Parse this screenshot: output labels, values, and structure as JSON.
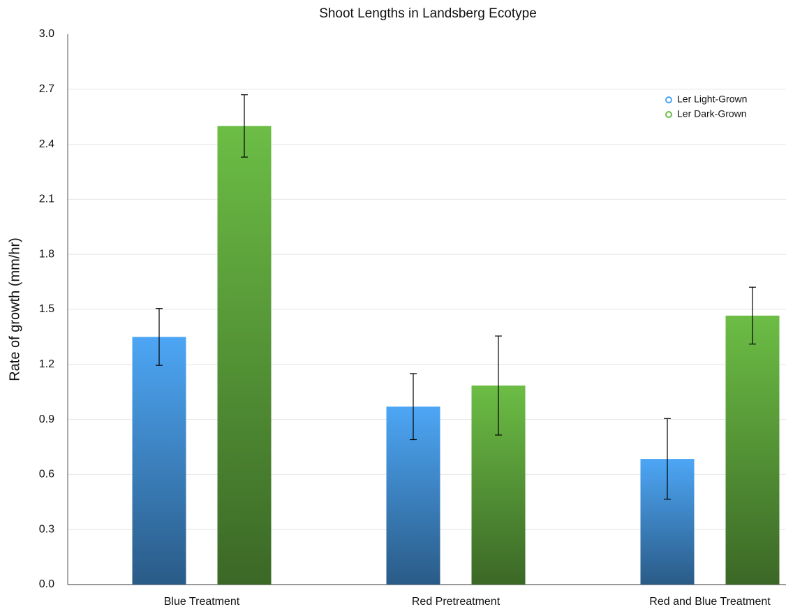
{
  "chart_data": {
    "type": "bar",
    "title": "Shoot Lengths in Landsberg Ecotype",
    "y_label": "Rate of growth (mm/hr)",
    "categories": [
      "Blue Treatment",
      "Red Pretreatment",
      "Red and Blue Treatment"
    ],
    "series": [
      {
        "name": "Ler Light-Grown",
        "color": "#4da6f5",
        "values": [
          1.35,
          0.97,
          0.685
        ],
        "errors": [
          0.155,
          0.18,
          0.22
        ]
      },
      {
        "name": "Ler Dark-Grown",
        "color": "#6cbd45",
        "values": [
          2.5,
          1.085,
          1.466
        ],
        "errors": [
          0.17,
          0.27,
          0.155
        ]
      }
    ],
    "ylim": [
      0,
      3
    ],
    "yticks": [
      {
        "value": 0,
        "label": "0.0"
      },
      0.3,
      0.6,
      0.9,
      1.2,
      1.5,
      1.8,
      2.1,
      2.4,
      2.7,
      {
        "value": 3,
        "label": "3.0"
      }
    ],
    "grid": true,
    "legend": "top-right"
  }
}
